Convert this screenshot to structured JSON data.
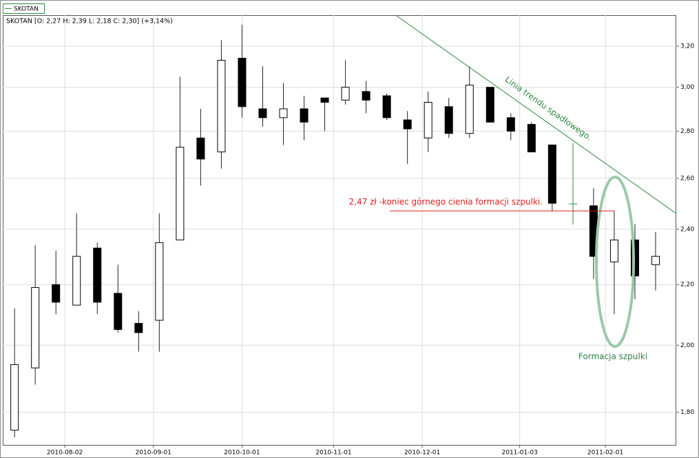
{
  "chart_data": {
    "type": "candlestick",
    "legend": "SKOTAN",
    "subtitle": "SKOTAN [O: 2,27  H: 2,39  L: 2,18  C: 2,30] (+3,14%)",
    "x": [
      "2010-07-16",
      "2010-07-23",
      "2010-07-30",
      "2010-08-06",
      "2010-08-13",
      "2010-08-20",
      "2010-08-27",
      "2010-09-03",
      "2010-09-10",
      "2010-09-17",
      "2010-09-24",
      "2010-10-01",
      "2010-10-08",
      "2010-10-15",
      "2010-10-22",
      "2010-10-29",
      "2010-11-05",
      "2010-11-12",
      "2010-11-19",
      "2010-11-26",
      "2010-12-03",
      "2010-12-10",
      "2010-12-17",
      "2010-12-24",
      "2010-12-31",
      "2011-01-07",
      "2011-01-14",
      "2011-01-28",
      "2011-02-04",
      "2011-02-11",
      "2011-02-18"
    ],
    "open": [
      1.75,
      1.93,
      2.2,
      2.13,
      2.33,
      2.17,
      2.07,
      2.08,
      2.36,
      2.77,
      2.71,
      3.14,
      2.9,
      2.86,
      2.9,
      2.95,
      2.94,
      2.98,
      2.96,
      2.85,
      2.77,
      2.91,
      2.79,
      3.0,
      2.86,
      2.83,
      2.74,
      2.49,
      2.28,
      2.36,
      2.27
    ],
    "high": [
      2.12,
      2.34,
      2.32,
      2.46,
      2.35,
      2.27,
      2.11,
      2.46,
      3.05,
      2.9,
      3.23,
      3.31,
      3.1,
      3.02,
      2.96,
      2.95,
      3.13,
      3.03,
      2.97,
      2.89,
      2.98,
      2.95,
      3.1,
      3.0,
      2.88,
      2.84,
      2.74,
      2.56,
      2.47,
      2.42,
      2.39
    ],
    "low": [
      1.73,
      1.88,
      2.1,
      2.13,
      2.1,
      2.04,
      1.98,
      1.98,
      2.36,
      2.57,
      2.64,
      2.86,
      2.82,
      2.74,
      2.76,
      2.8,
      2.92,
      2.88,
      2.85,
      2.66,
      2.71,
      2.77,
      2.77,
      2.84,
      2.76,
      2.71,
      2.47,
      2.22,
      2.1,
      2.15,
      2.18
    ],
    "close": [
      1.94,
      2.19,
      2.14,
      2.3,
      2.14,
      2.05,
      2.04,
      2.35,
      2.73,
      2.68,
      3.13,
      2.91,
      2.86,
      2.9,
      2.84,
      2.93,
      3.0,
      2.94,
      2.86,
      2.81,
      2.93,
      2.79,
      3.01,
      2.84,
      2.8,
      2.71,
      2.5,
      2.3,
      2.36,
      2.23,
      2.3
    ],
    "up_color": "#ffffff",
    "down_color": "#000000",
    "xlim": [
      "2010-07-12",
      "2011-02-25"
    ],
    "xticks": [
      "2010-08-02",
      "2010-09-01",
      "2010-10-01",
      "2010-11-01",
      "2010-12-01",
      "2011-01-03",
      "2011-02-01"
    ],
    "ylim": [
      1.71,
      3.36
    ],
    "log_y": true,
    "grid": true,
    "yticks": [
      {
        "value": 1.8,
        "label": "1,80"
      },
      {
        "value": 2.0,
        "label": "2,00"
      },
      {
        "value": 2.2,
        "label": "2,20"
      },
      {
        "value": 2.4,
        "label": "2,40"
      },
      {
        "value": 2.6,
        "label": "2,60"
      },
      {
        "value": 2.8,
        "label": "2,80"
      },
      {
        "value": 3.0,
        "label": "3,00"
      },
      {
        "value": 3.2,
        "label": "3,20"
      }
    ],
    "annotations": {
      "trendline": {
        "x": [
          "2010-11-22",
          "2011-02-25"
        ],
        "y": [
          3.36,
          2.46
        ],
        "label": "Linia trendu spadłowego.",
        "color": "#2e8b3e"
      },
      "level": {
        "value": 2.47,
        "x": [
          "2010-11-20",
          "2011-02-04"
        ],
        "label": "2,47 zł -koniec górnego cienia formacji szpulki.",
        "color": "#e0201c"
      },
      "pattern_label": "Formacja szpulki"
    }
  }
}
